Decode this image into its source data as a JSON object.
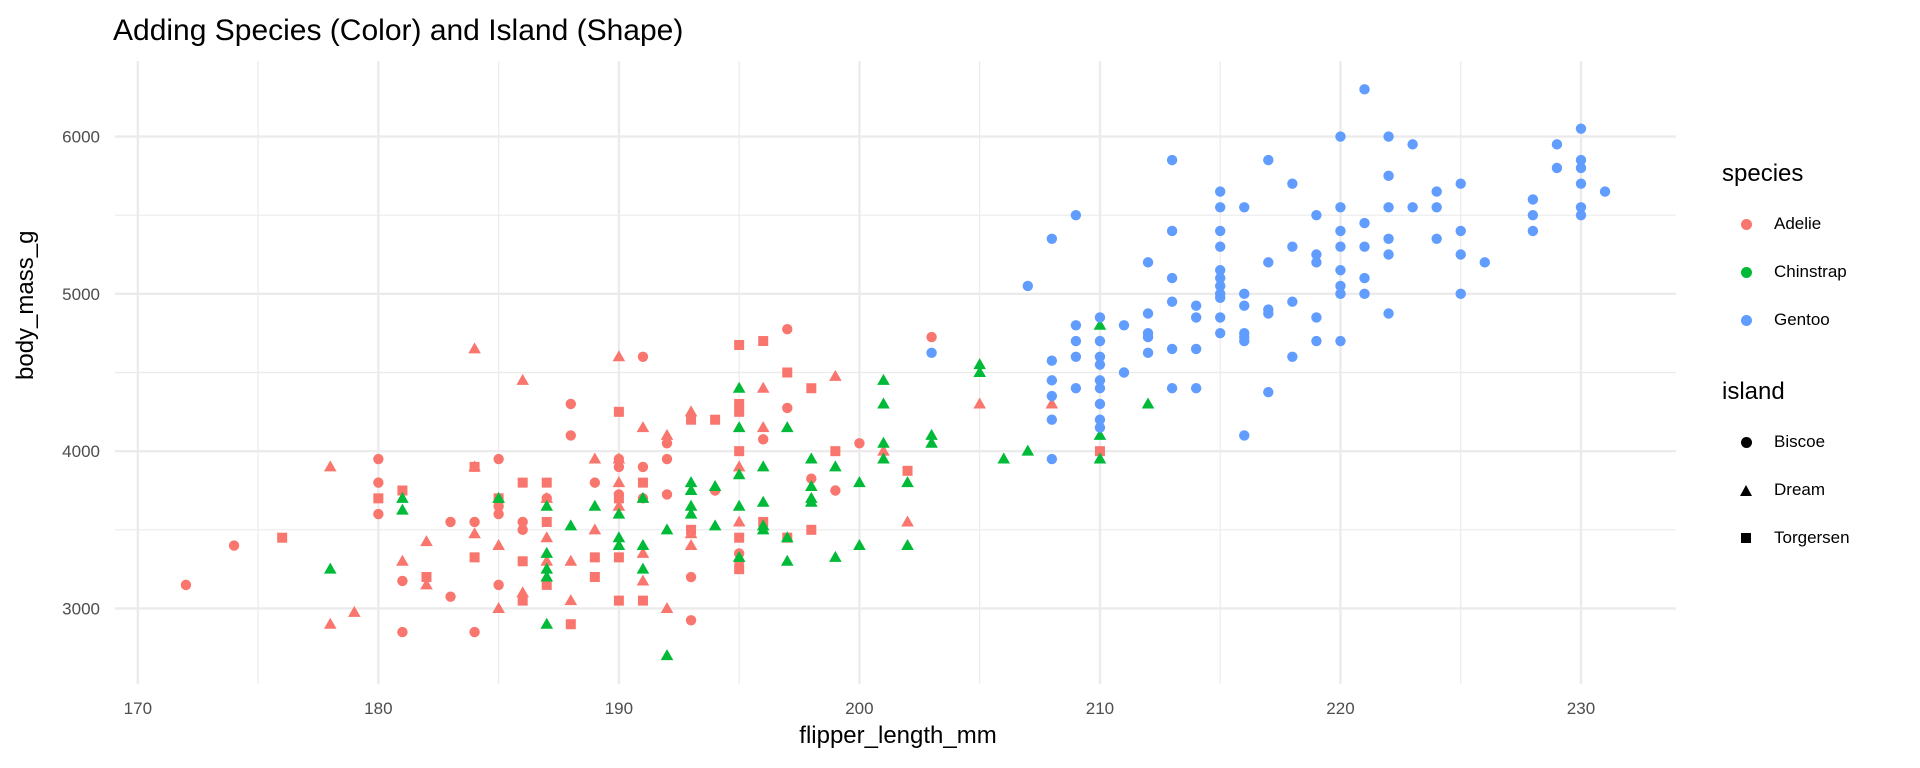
{
  "chart_data": {
    "type": "scatter",
    "title": "Adding Species (Color) and Island (Shape)",
    "xlabel": "flipper_length_mm",
    "ylabel": "body_mass_g",
    "xlim": [
      169.05,
      233.95
    ],
    "ylim": [
      2520,
      6480
    ],
    "xticks": [
      170,
      180,
      190,
      200,
      210,
      220,
      230
    ],
    "yticks": [
      3000,
      4000,
      5000,
      6000
    ],
    "grid": true,
    "legend_placement": "right",
    "colors": {
      "Adelie": "#F8766D",
      "Chinstrap": "#00BA38",
      "Gentoo": "#619CFF"
    },
    "legend": {
      "species_title": "species",
      "species": [
        "Adelie",
        "Chinstrap",
        "Gentoo"
      ],
      "island_title": "island",
      "islands": [
        "Biscoe",
        "Dream",
        "Torgersen"
      ]
    },
    "series": [
      {
        "species": "Adelie",
        "island": "Biscoe",
        "points": [
          [
            172,
            3150
          ],
          [
            174,
            3400
          ],
          [
            180,
            3950
          ],
          [
            180,
            3800
          ],
          [
            180,
            3600
          ],
          [
            181,
            3175
          ],
          [
            181,
            2850
          ],
          [
            183,
            3550
          ],
          [
            183,
            3075
          ],
          [
            184,
            3550
          ],
          [
            184,
            2850
          ],
          [
            185,
            3950
          ],
          [
            185,
            3650
          ],
          [
            185,
            3600
          ],
          [
            185,
            3150
          ],
          [
            186,
            3550
          ],
          [
            186,
            3500
          ],
          [
            187,
            3700
          ],
          [
            188,
            4300
          ],
          [
            188,
            4100
          ],
          [
            189,
            3800
          ],
          [
            190,
            3950
          ],
          [
            190,
            3900
          ],
          [
            190,
            3725
          ],
          [
            191,
            4600
          ],
          [
            191,
            3900
          ],
          [
            191,
            3700
          ],
          [
            192,
            4050
          ],
          [
            192,
            3950
          ],
          [
            192,
            3725
          ],
          [
            193,
            3200
          ],
          [
            193,
            2925
          ],
          [
            194,
            3750
          ],
          [
            195,
            3350
          ],
          [
            195,
            3300
          ],
          [
            196,
            4075
          ],
          [
            197,
            4775
          ],
          [
            197,
            4275
          ],
          [
            198,
            3825
          ],
          [
            199,
            3750
          ],
          [
            200,
            4050
          ],
          [
            203,
            4725
          ]
        ]
      },
      {
        "species": "Adelie",
        "island": "Dream",
        "points": [
          [
            178,
            3900
          ],
          [
            178,
            2900
          ],
          [
            179,
            2975
          ],
          [
            181,
            3300
          ],
          [
            182,
            3425
          ],
          [
            182,
            3150
          ],
          [
            184,
            4650
          ],
          [
            184,
            3900
          ],
          [
            184,
            3475
          ],
          [
            185,
            3700
          ],
          [
            185,
            3400
          ],
          [
            185,
            3000
          ],
          [
            186,
            4450
          ],
          [
            186,
            3100
          ],
          [
            187,
            3700
          ],
          [
            187,
            3450
          ],
          [
            187,
            3300
          ],
          [
            188,
            3300
          ],
          [
            188,
            3050
          ],
          [
            189,
            3950
          ],
          [
            189,
            3500
          ],
          [
            190,
            4600
          ],
          [
            190,
            3950
          ],
          [
            190,
            3800
          ],
          [
            190,
            3650
          ],
          [
            191,
            4150
          ],
          [
            191,
            3350
          ],
          [
            191,
            3175
          ],
          [
            192,
            4100
          ],
          [
            192,
            3000
          ],
          [
            193,
            4250
          ],
          [
            193,
            3475
          ],
          [
            193,
            3400
          ],
          [
            195,
            3900
          ],
          [
            195,
            3550
          ],
          [
            196,
            4400
          ],
          [
            196,
            4150
          ],
          [
            199,
            4475
          ],
          [
            201,
            4000
          ],
          [
            202,
            3550
          ],
          [
            205,
            4300
          ],
          [
            208,
            4300
          ]
        ]
      },
      {
        "species": "Adelie",
        "island": "Torgersen",
        "points": [
          [
            176,
            3450
          ],
          [
            180,
            3700
          ],
          [
            181,
            3750
          ],
          [
            182,
            3200
          ],
          [
            184,
            3900
          ],
          [
            184,
            3325
          ],
          [
            185,
            3700
          ],
          [
            186,
            3800
          ],
          [
            186,
            3300
          ],
          [
            186,
            3050
          ],
          [
            187,
            3800
          ],
          [
            187,
            3550
          ],
          [
            187,
            3150
          ],
          [
            188,
            2900
          ],
          [
            189,
            3325
          ],
          [
            189,
            3200
          ],
          [
            190,
            4250
          ],
          [
            190,
            3700
          ],
          [
            190,
            3325
          ],
          [
            190,
            3050
          ],
          [
            191,
            3800
          ],
          [
            191,
            3050
          ],
          [
            193,
            4200
          ],
          [
            193,
            3500
          ],
          [
            194,
            4200
          ],
          [
            195,
            4675
          ],
          [
            195,
            4300
          ],
          [
            195,
            4250
          ],
          [
            195,
            4000
          ],
          [
            195,
            3450
          ],
          [
            195,
            3250
          ],
          [
            196,
            4700
          ],
          [
            196,
            3550
          ],
          [
            197,
            4500
          ],
          [
            197,
            3450
          ],
          [
            198,
            4400
          ],
          [
            198,
            3500
          ],
          [
            199,
            4000
          ],
          [
            202,
            3875
          ],
          [
            210,
            4000
          ]
        ]
      },
      {
        "species": "Chinstrap",
        "island": "Dream",
        "points": [
          [
            178,
            3250
          ],
          [
            181,
            3700
          ],
          [
            181,
            3625
          ],
          [
            185,
            3700
          ],
          [
            187,
            3650
          ],
          [
            187,
            3350
          ],
          [
            187,
            3250
          ],
          [
            187,
            3200
          ],
          [
            187,
            2900
          ],
          [
            188,
            3525
          ],
          [
            189,
            3650
          ],
          [
            190,
            3600
          ],
          [
            190,
            3450
          ],
          [
            190,
            3400
          ],
          [
            191,
            3700
          ],
          [
            191,
            3400
          ],
          [
            191,
            3250
          ],
          [
            192,
            3500
          ],
          [
            192,
            2700
          ],
          [
            193,
            3800
          ],
          [
            193,
            3750
          ],
          [
            193,
            3650
          ],
          [
            193,
            3600
          ],
          [
            194,
            3775
          ],
          [
            194,
            3525
          ],
          [
            195,
            4400
          ],
          [
            195,
            4150
          ],
          [
            195,
            3850
          ],
          [
            195,
            3650
          ],
          [
            195,
            3325
          ],
          [
            196,
            3900
          ],
          [
            196,
            3675
          ],
          [
            196,
            3525
          ],
          [
            196,
            3500
          ],
          [
            197,
            4150
          ],
          [
            197,
            3450
          ],
          [
            197,
            3300
          ],
          [
            198,
            3950
          ],
          [
            198,
            3775
          ],
          [
            198,
            3700
          ],
          [
            198,
            3675
          ],
          [
            199,
            3900
          ],
          [
            199,
            3325
          ],
          [
            200,
            3800
          ],
          [
            200,
            3400
          ],
          [
            201,
            4450
          ],
          [
            201,
            4300
          ],
          [
            201,
            4050
          ],
          [
            201,
            3950
          ],
          [
            202,
            3800
          ],
          [
            202,
            3400
          ],
          [
            203,
            4100
          ],
          [
            203,
            4050
          ],
          [
            205,
            4550
          ],
          [
            205,
            4500
          ],
          [
            206,
            3950
          ],
          [
            207,
            4000
          ],
          [
            210,
            4800
          ],
          [
            210,
            4100
          ],
          [
            210,
            3950
          ],
          [
            212,
            4300
          ]
        ]
      },
      {
        "species": "Gentoo",
        "island": "Biscoe",
        "points": [
          [
            203,
            4625
          ],
          [
            207,
            5050
          ],
          [
            208,
            5350
          ],
          [
            208,
            4575
          ],
          [
            208,
            4450
          ],
          [
            208,
            4350
          ],
          [
            208,
            4200
          ],
          [
            208,
            3950
          ],
          [
            209,
            5500
          ],
          [
            209,
            4800
          ],
          [
            209,
            4700
          ],
          [
            209,
            4600
          ],
          [
            209,
            4400
          ],
          [
            210,
            4850
          ],
          [
            210,
            4700
          ],
          [
            210,
            4600
          ],
          [
            210,
            4550
          ],
          [
            210,
            4450
          ],
          [
            210,
            4400
          ],
          [
            210,
            4300
          ],
          [
            210,
            4200
          ],
          [
            210,
            4150
          ],
          [
            211,
            4800
          ],
          [
            211,
            4500
          ],
          [
            212,
            5200
          ],
          [
            212,
            4875
          ],
          [
            212,
            4750
          ],
          [
            212,
            4725
          ],
          [
            212,
            4625
          ],
          [
            213,
            5850
          ],
          [
            213,
            5400
          ],
          [
            213,
            5100
          ],
          [
            213,
            4950
          ],
          [
            213,
            4650
          ],
          [
            213,
            4400
          ],
          [
            214,
            4925
          ],
          [
            214,
            4850
          ],
          [
            214,
            4650
          ],
          [
            214,
            4400
          ],
          [
            215,
            5650
          ],
          [
            215,
            5550
          ],
          [
            215,
            5400
          ],
          [
            215,
            5300
          ],
          [
            215,
            5150
          ],
          [
            215,
            5100
          ],
          [
            215,
            5050
          ],
          [
            215,
            5000
          ],
          [
            215,
            4975
          ],
          [
            215,
            4850
          ],
          [
            215,
            4750
          ],
          [
            216,
            5550
          ],
          [
            216,
            5000
          ],
          [
            216,
            4925
          ],
          [
            216,
            4750
          ],
          [
            216,
            4725
          ],
          [
            216,
            4700
          ],
          [
            216,
            4100
          ],
          [
            217,
            5850
          ],
          [
            217,
            5200
          ],
          [
            217,
            4900
          ],
          [
            217,
            4875
          ],
          [
            217,
            4375
          ],
          [
            218,
            5700
          ],
          [
            218,
            5300
          ],
          [
            218,
            4950
          ],
          [
            218,
            4600
          ],
          [
            219,
            5500
          ],
          [
            219,
            5250
          ],
          [
            219,
            5200
          ],
          [
            219,
            4850
          ],
          [
            219,
            4700
          ],
          [
            220,
            6000
          ],
          [
            220,
            5550
          ],
          [
            220,
            5400
          ],
          [
            220,
            5300
          ],
          [
            220,
            5150
          ],
          [
            220,
            5050
          ],
          [
            220,
            5000
          ],
          [
            220,
            4700
          ],
          [
            221,
            6300
          ],
          [
            221,
            5450
          ],
          [
            221,
            5300
          ],
          [
            221,
            5100
          ],
          [
            221,
            5000
          ],
          [
            222,
            6000
          ],
          [
            222,
            5750
          ],
          [
            222,
            5550
          ],
          [
            222,
            5350
          ],
          [
            222,
            5250
          ],
          [
            222,
            4875
          ],
          [
            223,
            5950
          ],
          [
            223,
            5550
          ],
          [
            224,
            5650
          ],
          [
            224,
            5550
          ],
          [
            224,
            5350
          ],
          [
            225,
            5700
          ],
          [
            225,
            5400
          ],
          [
            225,
            5250
          ],
          [
            225,
            5000
          ],
          [
            226,
            5200
          ],
          [
            228,
            5600
          ],
          [
            228,
            5500
          ],
          [
            228,
            5400
          ],
          [
            229,
            5950
          ],
          [
            229,
            5800
          ],
          [
            230,
            6050
          ],
          [
            230,
            5850
          ],
          [
            230,
            5800
          ],
          [
            230,
            5700
          ],
          [
            230,
            5550
          ],
          [
            230,
            5500
          ],
          [
            231,
            5650
          ]
        ]
      }
    ]
  }
}
